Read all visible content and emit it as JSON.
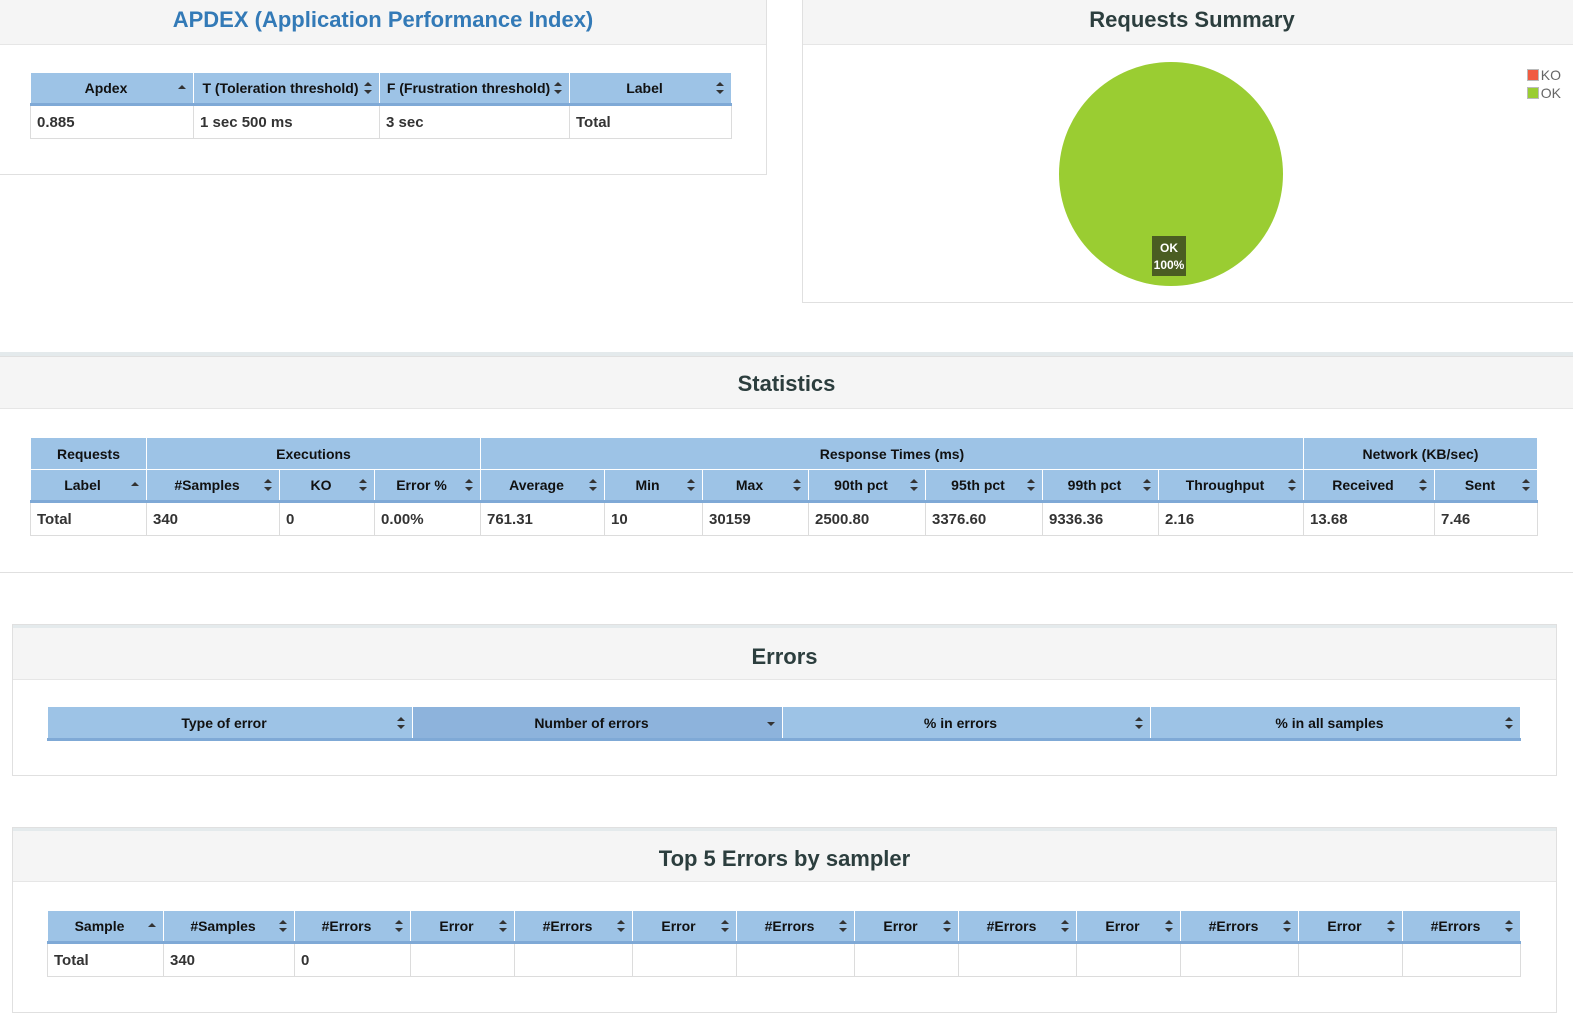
{
  "apdex": {
    "title": "APDEX (Application Performance Index)",
    "headers": [
      "Apdex",
      "T (Toleration threshold)",
      "F (Frustration threshold)",
      "Label"
    ],
    "rows": [
      [
        "0.885",
        "1 sec 500 ms",
        "3 sec",
        "Total"
      ]
    ]
  },
  "requests_summary": {
    "title": "Requests Summary",
    "legend": [
      {
        "label": "KO",
        "color": "#f05b41"
      },
      {
        "label": "OK",
        "color": "#9acd32"
      }
    ],
    "slice_label": "OK",
    "slice_percent": "100%",
    "chart_data": {
      "type": "pie",
      "categories": [
        "KO",
        "OK"
      ],
      "values": [
        0,
        100
      ],
      "colors": [
        "#f05b41",
        "#9acd32"
      ]
    }
  },
  "statistics": {
    "title": "Statistics",
    "groups": [
      "Requests",
      "Executions",
      "Response Times (ms)",
      "Network (KB/sec)"
    ],
    "headers": [
      "Label",
      "#Samples",
      "KO",
      "Error %",
      "Average",
      "Min",
      "Max",
      "90th pct",
      "95th pct",
      "99th pct",
      "Throughput",
      "Received",
      "Sent"
    ],
    "rows": [
      [
        "Total",
        "340",
        "0",
        "0.00%",
        "761.31",
        "10",
        "30159",
        "2500.80",
        "3376.60",
        "9336.36",
        "2.16",
        "13.68",
        "7.46"
      ]
    ]
  },
  "errors": {
    "title": "Errors",
    "headers": [
      "Type of error",
      "Number of errors",
      "% in errors",
      "% in all samples"
    ]
  },
  "top5": {
    "title": "Top 5 Errors by sampler",
    "headers": [
      "Sample",
      "#Samples",
      "#Errors",
      "Error",
      "#Errors",
      "Error",
      "#Errors",
      "Error",
      "#Errors",
      "Error",
      "#Errors",
      "Error",
      "#Errors"
    ],
    "rows": [
      [
        "Total",
        "340",
        "0",
        "",
        "",
        "",
        "",
        "",
        "",
        "",
        "",
        "",
        ""
      ]
    ]
  }
}
